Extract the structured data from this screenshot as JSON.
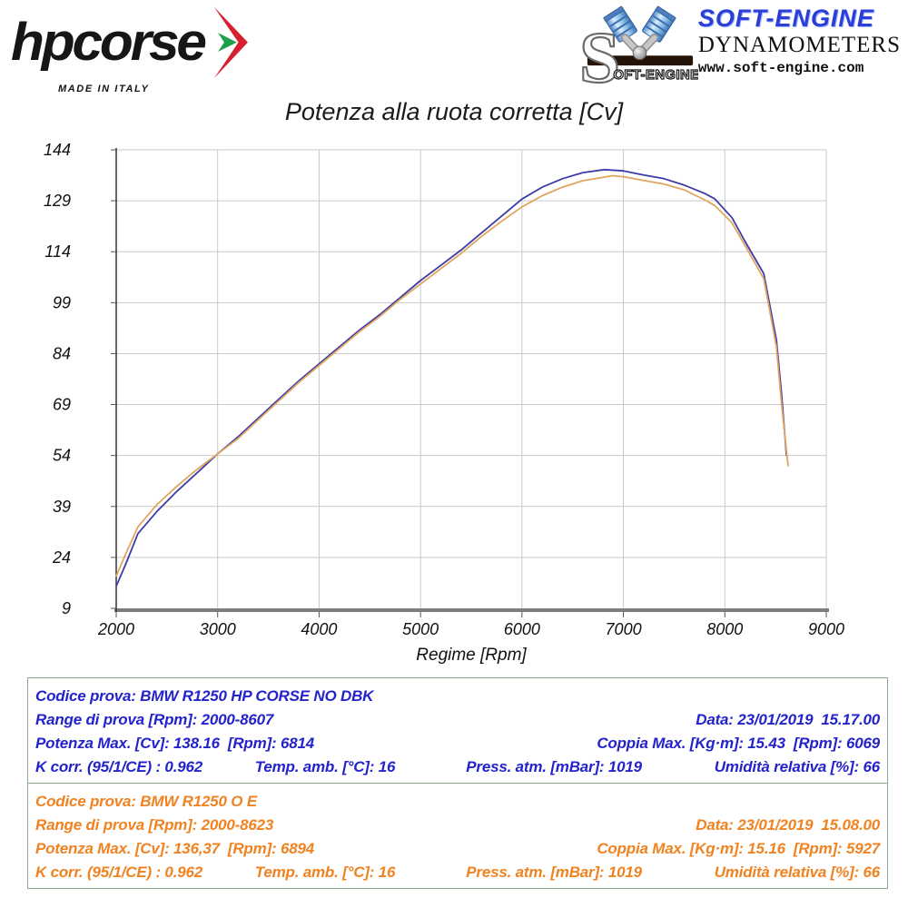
{
  "header": {
    "hpcorse": {
      "brand": "hpcorse",
      "made_in": "MADE IN ITALY",
      "arrow_red": "#d6202e",
      "arrow_green": "#1f9e4b"
    },
    "softengine": {
      "brand": "SOFT-ENGINE",
      "sub": "DYNAMOMETERS",
      "url": "www.soft-engine.com",
      "logo_s": "S",
      "logo_text": "OFT-ENGINE"
    }
  },
  "chart_data": {
    "type": "line",
    "title": "Potenza alla ruota corretta [Cv]",
    "xlabel": "Regime [Rpm]",
    "ylabel": "",
    "xlim": [
      2000,
      9000
    ],
    "ylim": [
      9,
      144
    ],
    "x_ticks": [
      2000,
      3000,
      4000,
      5000,
      6000,
      7000,
      8000,
      9000
    ],
    "y_ticks": [
      9,
      24,
      39,
      54,
      69,
      84,
      99,
      114,
      129,
      144
    ],
    "grid": true,
    "legend_position": "none",
    "grid_color": "#c9c9c9",
    "x_axis_color": "#7d7d7d",
    "y_axis_color": "#333333",
    "series": [
      {
        "name": "BMW R1250 HP CORSE NO DBK",
        "color": "#3c3ca8",
        "x": [
          2000,
          2100,
          2214,
          2400,
          2600,
          2800,
          3000,
          3200,
          3400,
          3600,
          3800,
          4000,
          4200,
          4400,
          4600,
          4800,
          5000,
          5200,
          5400,
          5600,
          5800,
          6000,
          6200,
          6400,
          6600,
          6814,
          7000,
          7200,
          7400,
          7600,
          7800,
          7900,
          8071,
          8200,
          8384,
          8509,
          8560,
          8607
        ],
        "y": [
          15.5,
          22.5,
          31,
          37.5,
          43.5,
          49,
          54.5,
          59.5,
          65,
          70.5,
          76,
          81,
          86,
          91,
          95.5,
          100.5,
          105.5,
          110,
          114.5,
          119.5,
          124.5,
          129.5,
          133,
          135.5,
          137.3,
          138.16,
          137.8,
          136.6,
          135.5,
          133.6,
          131.2,
          129.6,
          124,
          117,
          107.5,
          88,
          72,
          54
        ]
      },
      {
        "name": "BMW R1250 O E",
        "color": "#e0a55e",
        "x": [
          2000,
          2100,
          2214,
          2400,
          2600,
          2800,
          3000,
          3200,
          3400,
          3600,
          3800,
          4000,
          4200,
          4400,
          4600,
          4800,
          5000,
          5200,
          5400,
          5600,
          5800,
          6000,
          6200,
          6400,
          6600,
          6894,
          7000,
          7200,
          7400,
          7600,
          7800,
          7900,
          8071,
          8200,
          8384,
          8509,
          8560,
          8623
        ],
        "y": [
          18.5,
          25.5,
          33,
          39.5,
          45,
          50,
          54.5,
          59,
          64.5,
          70,
          75.5,
          80.5,
          85.5,
          90.5,
          95,
          100,
          104.5,
          109,
          113.5,
          118.5,
          123,
          127.2,
          130.5,
          133,
          134.9,
          136.37,
          136.1,
          135,
          133.9,
          132.2,
          129.3,
          127.6,
          122.5,
          115.8,
          106,
          86,
          69,
          51
        ]
      }
    ]
  },
  "tests": [
    {
      "text_color": "#2323cc",
      "codice": "Codice prova: BMW R1250 HP CORSE NO DBK",
      "range": "Range di prova [Rpm]: 2000-8607",
      "data": "Data: 23/01/2019  15.17.00",
      "potenza": "Potenza Max. [Cv]: 138.16  [Rpm]: 6814",
      "coppia": "Coppia Max. [Kg·m]: 15.43  [Rpm]: 6069",
      "kcorr": "K corr. (95/1/CE) : 0.962",
      "temp": "Temp. amb. [°C]: 16",
      "press": "Press. atm. [mBar]: 1019",
      "umidita": "Umidità relativa [%]: 66"
    },
    {
      "text_color": "#f08220",
      "codice": "Codice prova: BMW R1250 O E",
      "range": "Range di prova [Rpm]: 2000-8623",
      "data": "Data: 23/01/2019  15.08.00",
      "potenza": "Potenza Max. [Cv]: 136,37  [Rpm]: 6894",
      "coppia": "Coppia Max. [Kg·m]: 15.16  [Rpm]: 5927",
      "kcorr": "K corr. (95/1/CE) : 0.962",
      "temp": "Temp. amb. [°C]: 16",
      "press": "Press. atm. [mBar]: 1019",
      "umidita": "Umidità relativa [%]: 66"
    }
  ]
}
